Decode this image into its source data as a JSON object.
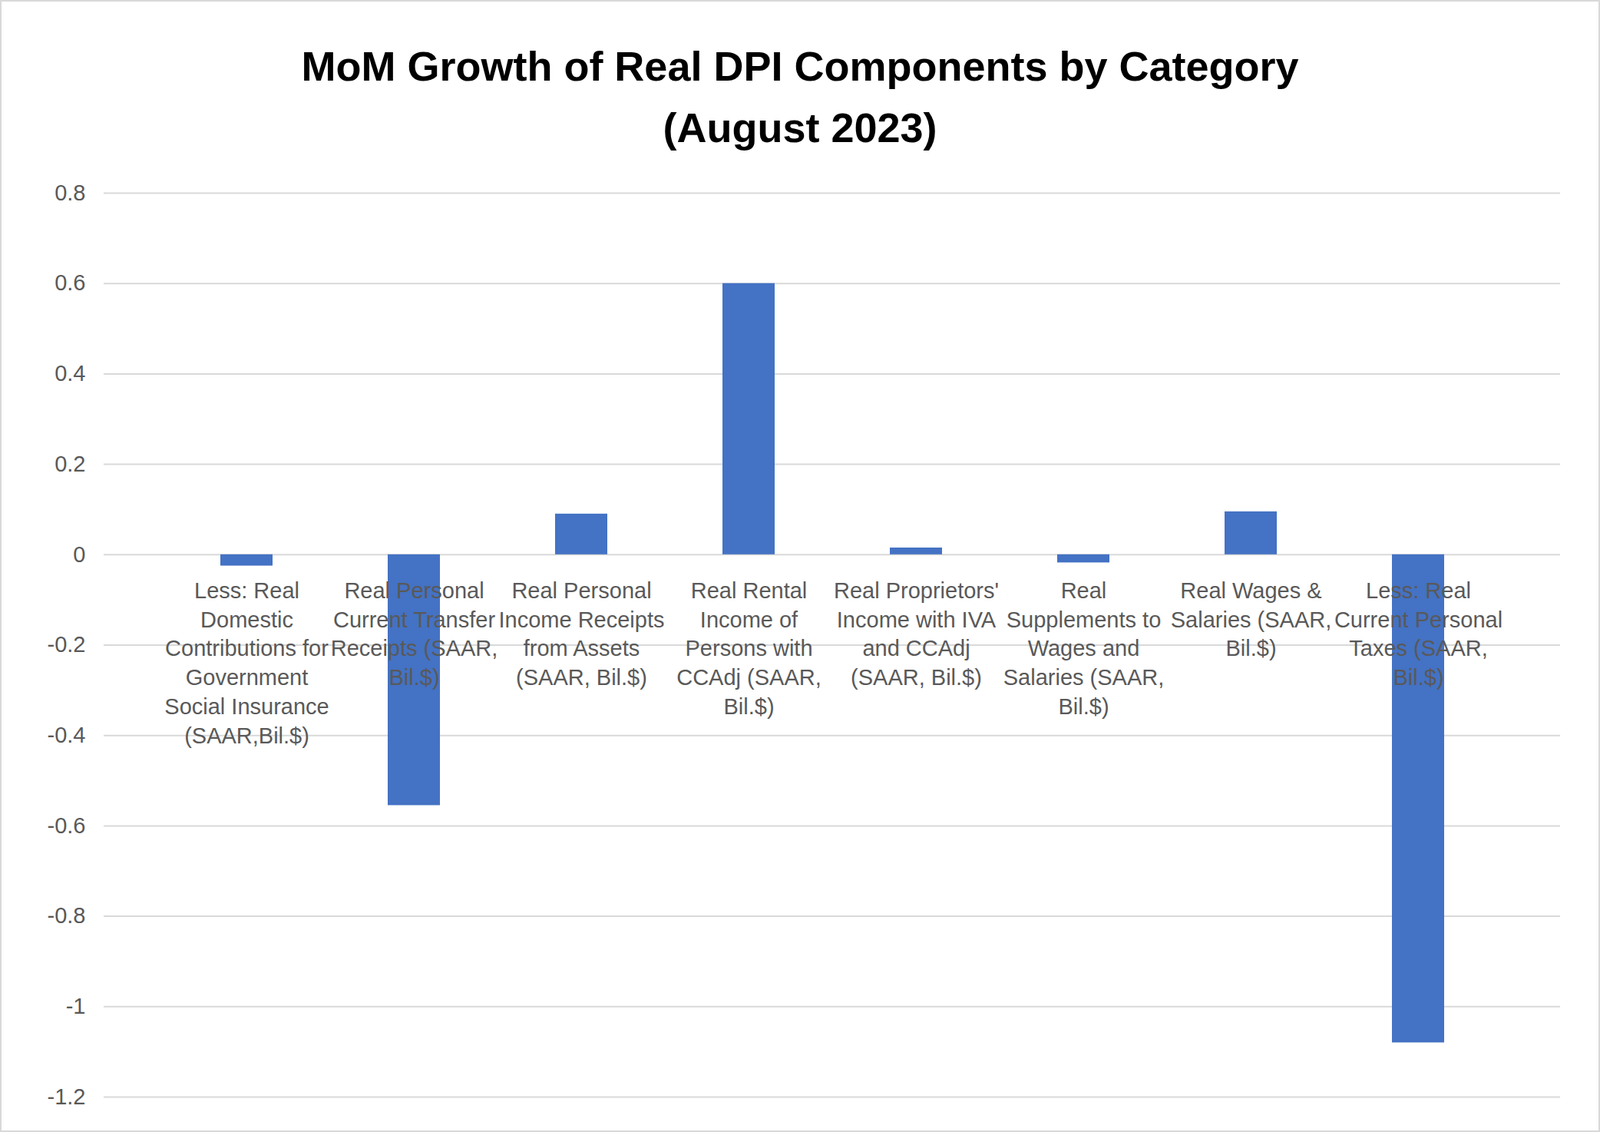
{
  "chart_data": {
    "type": "bar",
    "title": "MoM Growth of Real DPI Components by Category\n(August 2023)",
    "categories": [
      "Less: Real Domestic Contributions for Government Social Insurance (SAAR,Bil.$)",
      "Real Personal Current Transfer Receipts (SAAR, Bil.$)",
      "Real Personal Income Receipts from Assets (SAAR, Bil.$)",
      "Real Rental Income of Persons with CCAdj (SAAR, Bil.$)",
      "Real Proprietors' Income with IVA and CCAdj (SAAR, Bil.$)",
      "Real Supplements to Wages and Salaries (SAAR, Bil.$)",
      "Real Wages & Salaries (SAAR, Bil.$)",
      "Less: Real Current Personal Taxes (SAAR, Bil.$)"
    ],
    "values": [
      -0.025,
      -0.555,
      0.09,
      0.6,
      0.015,
      -0.018,
      0.095,
      -1.08
    ],
    "color": "#4472c4",
    "ylim": [
      -1.2,
      0.8
    ],
    "yticks": [
      -1.2,
      -1,
      -0.8,
      -0.6,
      -0.4,
      -0.2,
      0,
      0.2,
      0.4,
      0.6,
      0.8
    ],
    "grid": true
  }
}
